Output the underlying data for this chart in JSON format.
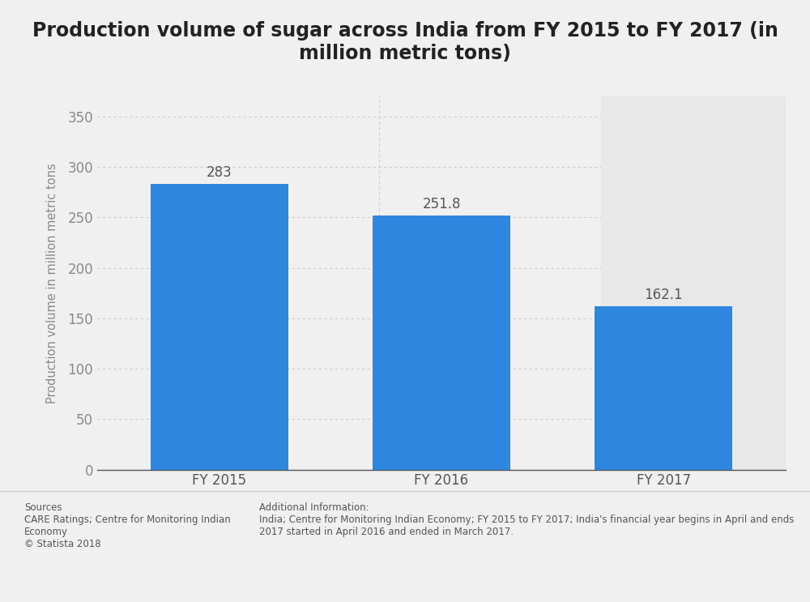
{
  "title": "Production volume of sugar across India from FY 2015 to FY 2017 (in\nmillion metric tons)",
  "categories": [
    "FY 2015",
    "FY 2016",
    "FY 2017"
  ],
  "values": [
    283,
    251.8,
    162.1
  ],
  "value_labels": [
    "283",
    "251.8",
    "162.1"
  ],
  "bar_color": "#2e86de",
  "ylabel": "Production volume in million metric tons",
  "ylim": [
    0,
    370
  ],
  "yticks": [
    0,
    50,
    100,
    150,
    200,
    250,
    300,
    350
  ],
  "background_color": "#f0f0f0",
  "plot_bg_color": "#f0f0f0",
  "right_panel_color": "#e8e8e8",
  "title_fontsize": 17,
  "label_fontsize": 10.5,
  "tick_fontsize": 12,
  "bar_label_fontsize": 12,
  "sources_text": "Sources\nCARE Ratings; Centre for Monitoring Indian\nEconomy\n© Statista 2018",
  "additional_text": "Additional Information:\nIndia; Centre for Monitoring Indian Economy; FY 2015 to FY 2017; India's financial year begins in April and ends\n2017 started in April 2016 and ended in March 2017."
}
